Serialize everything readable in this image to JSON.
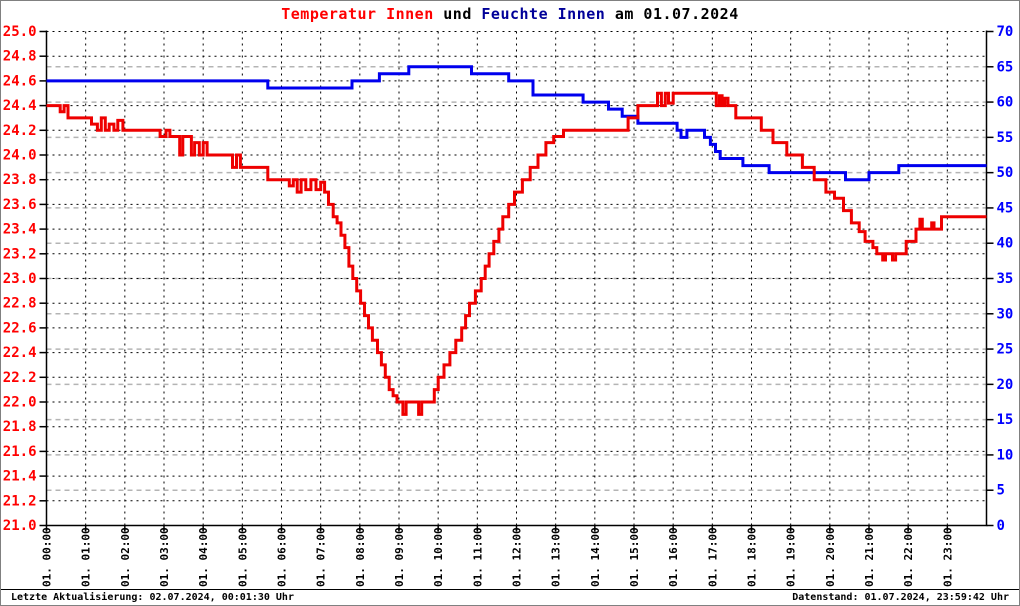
{
  "title": {
    "part1": "Temperatur Innen",
    "part2": " und ",
    "part3": "Feuchte Innen",
    "part4": " am 01.07.2024"
  },
  "status": {
    "left": "Letzte Aktualisierung: 02.07.2024, 00:01:30 Uhr",
    "right": "Datenstand: 01.07.2024, 23:59:42 Uhr"
  },
  "colors": {
    "temperature_line": "#ee0000",
    "humidity_line": "#0000ee",
    "left_axis_labels": "#ff0000",
    "right_axis_labels": "#0000ff",
    "title_temperature": "#ff0000",
    "title_humidity": "#000099",
    "x_axis_labels": "#000000",
    "grid_major": "#000000",
    "grid_minor": "#b4b4b4"
  },
  "chart_data": {
    "type": "line",
    "title": "Temperatur Innen und Feuchte Innen am 01.07.2024",
    "interpolation": "step-after",
    "grid": {
      "vertical": "hourly dashed black",
      "horizontal_major": "0.2 C dashed black",
      "horizontal_minor": "5 % dashed gray"
    },
    "x_axis": {
      "range_hours": [
        0,
        24
      ],
      "tick_labels": [
        "01. 00:00",
        "01. 01:00",
        "01. 02:00",
        "01. 03:00",
        "01. 04:00",
        "01. 05:00",
        "01. 06:00",
        "01. 07:00",
        "01. 08:00",
        "01. 09:00",
        "01. 10:00",
        "01. 11:00",
        "01. 12:00",
        "01. 13:00",
        "01. 14:00",
        "01. 15:00",
        "01. 16:00",
        "01. 17:00",
        "01. 18:00",
        "01. 19:00",
        "01. 20:00",
        "01. 21:00",
        "01. 22:00",
        "01. 23:00"
      ]
    },
    "left_axis": {
      "min": 21.0,
      "max": 25.0,
      "tick_step": 0.2,
      "tick_labels": [
        "25.0",
        "24.8",
        "24.6",
        "24.4",
        "24.2",
        "24.0",
        "23.8",
        "23.6",
        "23.4",
        "23.2",
        "23.0",
        "22.8",
        "22.6",
        "22.4",
        "22.2",
        "22.0",
        "21.8",
        "21.6",
        "21.4",
        "21.2",
        "21.0"
      ]
    },
    "right_axis": {
      "min": 0,
      "max": 70,
      "tick_step": 5,
      "tick_labels": [
        "70",
        "65",
        "60",
        "55",
        "50",
        "45",
        "40",
        "35",
        "30",
        "25",
        "20",
        "15",
        "10",
        "5",
        "0"
      ]
    },
    "series": [
      {
        "name": "Temperatur Innen",
        "axis": "left",
        "color": "#ee0000",
        "points": [
          [
            0.0,
            24.4
          ],
          [
            0.35,
            24.35
          ],
          [
            0.45,
            24.4
          ],
          [
            0.55,
            24.3
          ],
          [
            1.15,
            24.25
          ],
          [
            1.3,
            24.2
          ],
          [
            1.4,
            24.3
          ],
          [
            1.5,
            24.2
          ],
          [
            1.6,
            24.25
          ],
          [
            1.72,
            24.2
          ],
          [
            1.82,
            24.28
          ],
          [
            1.95,
            24.2
          ],
          [
            2.9,
            24.15
          ],
          [
            3.05,
            24.2
          ],
          [
            3.15,
            24.15
          ],
          [
            3.4,
            24.0
          ],
          [
            3.48,
            24.15
          ],
          [
            3.7,
            24.0
          ],
          [
            3.78,
            24.1
          ],
          [
            3.9,
            24.0
          ],
          [
            4.0,
            24.1
          ],
          [
            4.1,
            24.0
          ],
          [
            4.75,
            23.9
          ],
          [
            4.85,
            24.0
          ],
          [
            4.95,
            23.9
          ],
          [
            5.65,
            23.8
          ],
          [
            6.2,
            23.75
          ],
          [
            6.3,
            23.8
          ],
          [
            6.4,
            23.7
          ],
          [
            6.5,
            23.8
          ],
          [
            6.62,
            23.72
          ],
          [
            6.75,
            23.8
          ],
          [
            6.88,
            23.72
          ],
          [
            7.0,
            23.78
          ],
          [
            7.1,
            23.7
          ],
          [
            7.2,
            23.6
          ],
          [
            7.32,
            23.5
          ],
          [
            7.42,
            23.45
          ],
          [
            7.52,
            23.35
          ],
          [
            7.62,
            23.25
          ],
          [
            7.72,
            23.1
          ],
          [
            7.82,
            23.0
          ],
          [
            7.92,
            22.9
          ],
          [
            8.02,
            22.8
          ],
          [
            8.12,
            22.7
          ],
          [
            8.22,
            22.6
          ],
          [
            8.32,
            22.5
          ],
          [
            8.45,
            22.4
          ],
          [
            8.55,
            22.3
          ],
          [
            8.65,
            22.2
          ],
          [
            8.75,
            22.1
          ],
          [
            8.85,
            22.05
          ],
          [
            8.95,
            22.0
          ],
          [
            9.1,
            21.9
          ],
          [
            9.18,
            22.0
          ],
          [
            9.5,
            21.9
          ],
          [
            9.58,
            22.0
          ],
          [
            9.9,
            22.1
          ],
          [
            10.0,
            22.2
          ],
          [
            10.15,
            22.3
          ],
          [
            10.3,
            22.4
          ],
          [
            10.45,
            22.5
          ],
          [
            10.6,
            22.6
          ],
          [
            10.7,
            22.7
          ],
          [
            10.8,
            22.8
          ],
          [
            10.95,
            22.9
          ],
          [
            11.1,
            23.0
          ],
          [
            11.2,
            23.1
          ],
          [
            11.3,
            23.2
          ],
          [
            11.42,
            23.3
          ],
          [
            11.55,
            23.4
          ],
          [
            11.65,
            23.5
          ],
          [
            11.8,
            23.6
          ],
          [
            11.95,
            23.7
          ],
          [
            12.15,
            23.8
          ],
          [
            12.35,
            23.9
          ],
          [
            12.55,
            24.0
          ],
          [
            12.75,
            24.1
          ],
          [
            12.95,
            24.15
          ],
          [
            13.2,
            24.2
          ],
          [
            14.85,
            24.3
          ],
          [
            15.1,
            24.4
          ],
          [
            15.6,
            24.5
          ],
          [
            15.7,
            24.4
          ],
          [
            15.8,
            24.5
          ],
          [
            15.88,
            24.42
          ],
          [
            16.0,
            24.5
          ],
          [
            17.1,
            24.4
          ],
          [
            17.18,
            24.48
          ],
          [
            17.25,
            24.4
          ],
          [
            17.32,
            24.46
          ],
          [
            17.4,
            24.4
          ],
          [
            17.6,
            24.3
          ],
          [
            18.25,
            24.2
          ],
          [
            18.55,
            24.1
          ],
          [
            18.9,
            24.0
          ],
          [
            19.3,
            23.9
          ],
          [
            19.6,
            23.8
          ],
          [
            19.9,
            23.7
          ],
          [
            20.12,
            23.65
          ],
          [
            20.35,
            23.55
          ],
          [
            20.55,
            23.45
          ],
          [
            20.75,
            23.38
          ],
          [
            20.9,
            23.3
          ],
          [
            21.1,
            23.25
          ],
          [
            21.2,
            23.2
          ],
          [
            21.35,
            23.15
          ],
          [
            21.42,
            23.2
          ],
          [
            21.6,
            23.15
          ],
          [
            21.68,
            23.2
          ],
          [
            21.95,
            23.3
          ],
          [
            22.2,
            23.4
          ],
          [
            22.3,
            23.48
          ],
          [
            22.36,
            23.4
          ],
          [
            22.6,
            23.45
          ],
          [
            22.66,
            23.4
          ],
          [
            22.85,
            23.5
          ],
          [
            24.0,
            23.5
          ]
        ]
      },
      {
        "name": "Feuchte Innen",
        "axis": "right",
        "color": "#0000ee",
        "points": [
          [
            0.0,
            63
          ],
          [
            5.65,
            62
          ],
          [
            7.8,
            63
          ],
          [
            8.5,
            64
          ],
          [
            9.25,
            65
          ],
          [
            10.85,
            64
          ],
          [
            11.8,
            63
          ],
          [
            12.42,
            61
          ],
          [
            13.7,
            60
          ],
          [
            14.35,
            59
          ],
          [
            14.7,
            58
          ],
          [
            15.1,
            57
          ],
          [
            16.1,
            56
          ],
          [
            16.2,
            55
          ],
          [
            16.35,
            56
          ],
          [
            16.8,
            55
          ],
          [
            16.95,
            54
          ],
          [
            17.08,
            53
          ],
          [
            17.2,
            52
          ],
          [
            17.78,
            51
          ],
          [
            18.45,
            50
          ],
          [
            20.4,
            49
          ],
          [
            21.0,
            50
          ],
          [
            21.76,
            51
          ],
          [
            24.0,
            51
          ]
        ]
      }
    ]
  }
}
